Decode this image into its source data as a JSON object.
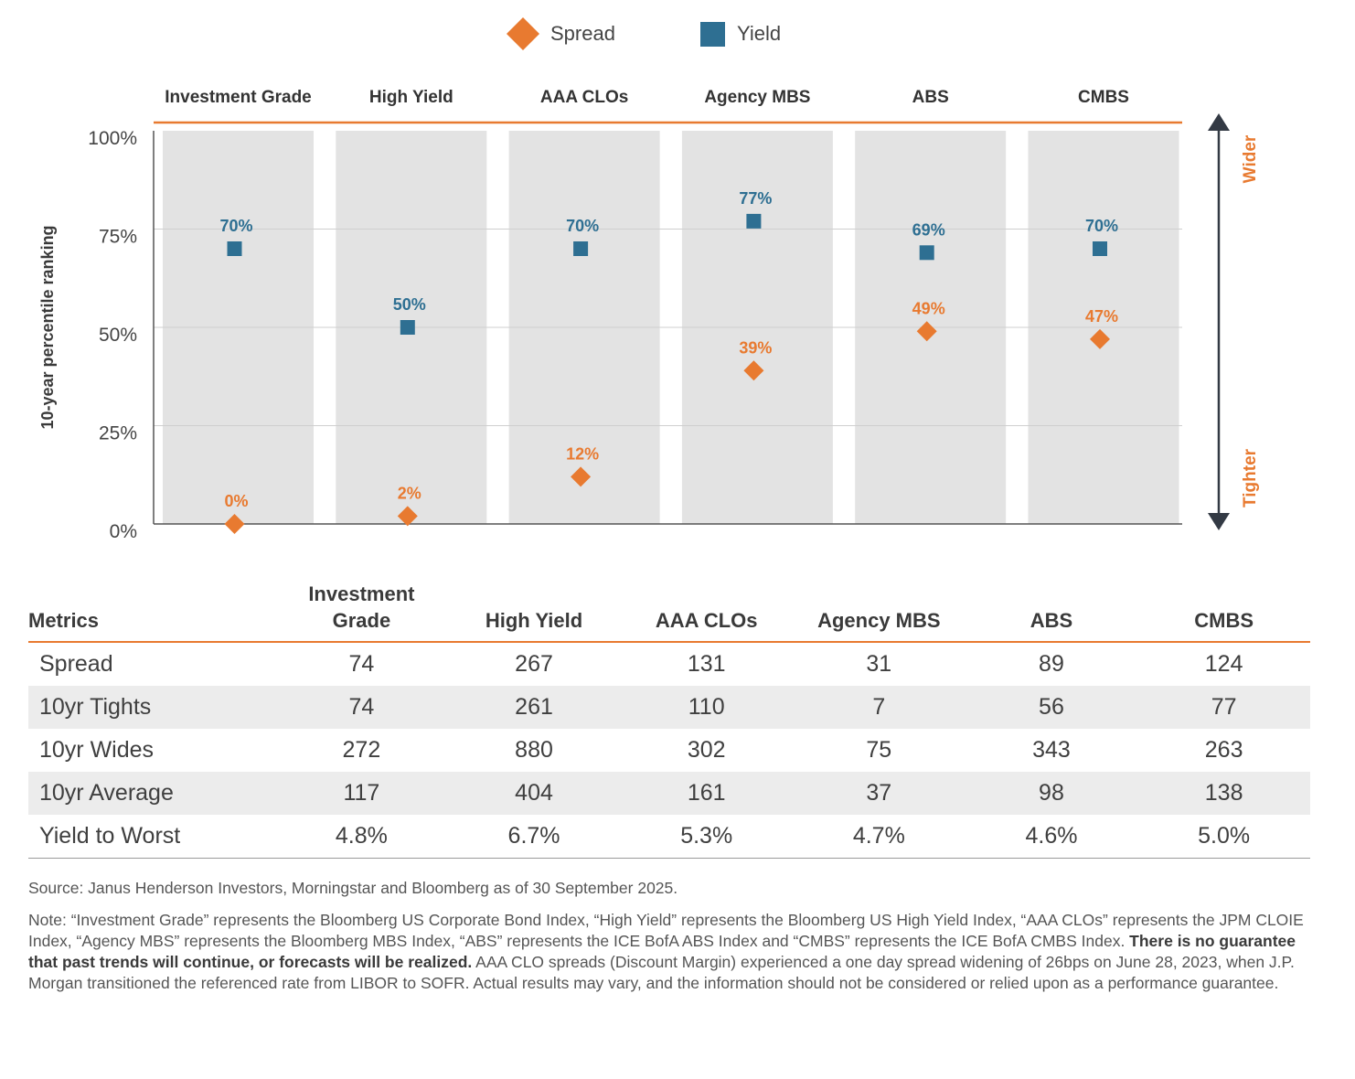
{
  "chart_data": {
    "type": "scatter",
    "categories": [
      "Investment Grade",
      "High Yield",
      "AAA CLOs",
      "Agency MBS",
      "ABS",
      "CMBS"
    ],
    "series": [
      {
        "name": "Spread",
        "marker": "diamond",
        "color": "#e87a30",
        "values": [
          0,
          2,
          12,
          39,
          49,
          47
        ],
        "labels": [
          "0%",
          "2%",
          "12%",
          "39%",
          "49%",
          "47%"
        ]
      },
      {
        "name": "Yield",
        "marker": "square",
        "color": "#2e6f92",
        "values": [
          70,
          50,
          70,
          77,
          69,
          70
        ],
        "labels": [
          "70%",
          "50%",
          "70%",
          "77%",
          "69%",
          "70%"
        ]
      }
    ],
    "ylabel": "10-year percentile ranking",
    "ylim": [
      0,
      100
    ],
    "yticks": [
      0,
      25,
      50,
      75,
      100
    ],
    "ytick_labels": [
      "0%",
      "25%",
      "50%",
      "75%",
      "100%"
    ],
    "grid": true,
    "legend": "top-center",
    "arrow_labels": {
      "top": "Wider",
      "bottom": "Tighter"
    }
  },
  "colors": {
    "spread": "#e87a30",
    "yield": "#2e6f92",
    "panel": "#e3e3e3",
    "accent": "#e87a30"
  },
  "table": {
    "header": [
      "Metrics",
      "Investment Grade",
      "High Yield",
      "AAA CLOs",
      "Agency MBS",
      "ABS",
      "CMBS"
    ],
    "rows": [
      {
        "label": "Spread",
        "values": [
          "74",
          "267",
          "131",
          "31",
          "89",
          "124"
        ]
      },
      {
        "label": "10yr Tights",
        "values": [
          "74",
          "261",
          "110",
          "7",
          "56",
          "77"
        ]
      },
      {
        "label": "10yr Wides",
        "values": [
          "272",
          "880",
          "302",
          "75",
          "343",
          "263"
        ]
      },
      {
        "label": "10yr Average",
        "values": [
          "117",
          "404",
          "161",
          "37",
          "98",
          "138"
        ]
      },
      {
        "label": "Yield to Worst",
        "values": [
          "4.8%",
          "6.7%",
          "5.3%",
          "4.7%",
          "4.6%",
          "5.0%"
        ]
      }
    ]
  },
  "footer": {
    "source": "Source: Janus Henderson Investors, Morningstar and Bloomberg as of 30 September 2025.",
    "note_start": "Note: “Investment Grade” represents the Bloomberg US Corporate Bond Index, “High Yield” represents the Bloomberg US High Yield Index, “AAA CLOs” represents the JPM CLOIE Index, “Agency MBS” represents the Bloomberg MBS Index, “ABS” represents the ICE BofA ABS Index and “CMBS” represents the ICE BofA CMBS Index. ",
    "note_bold": "There is no guarantee that past trends will continue, or forecasts will be realized.",
    "note_end": " AAA CLO spreads (Discount Margin) experienced a one day spread widening of 26bps on June 28, 2023, when J.P. Morgan transitioned the referenced rate from LIBOR to SOFR. Actual results may vary, and the information should not be considered or relied upon as a performance guarantee."
  }
}
